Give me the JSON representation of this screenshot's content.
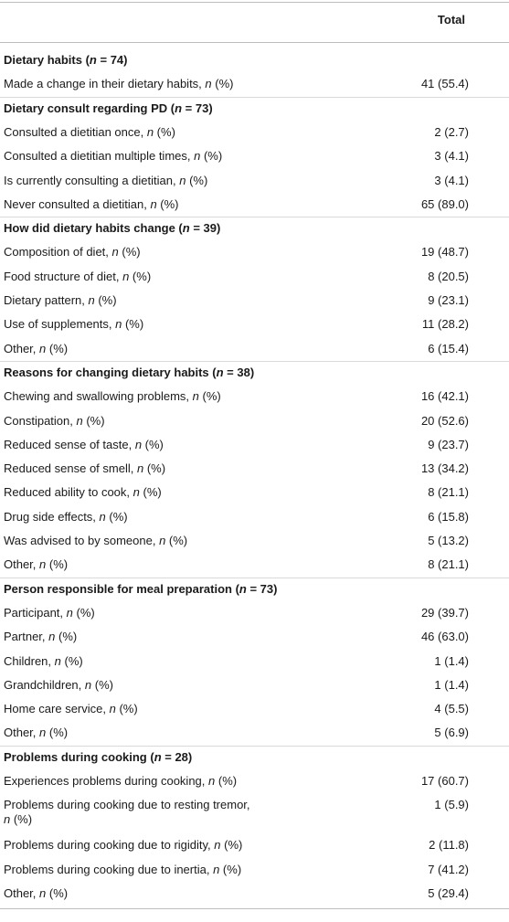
{
  "header": {
    "total_label": "Total"
  },
  "rows": [
    {
      "type": "section",
      "pre": "Dietary habits (",
      "n": "n",
      "post": " = 74)",
      "value": ""
    },
    {
      "type": "item",
      "pre": "Made a change in their dietary habits, ",
      "n": "n",
      "post": " (%)",
      "value": "41 (55.4)"
    },
    {
      "type": "section",
      "pre": "Dietary consult regarding PD (",
      "n": "n",
      "post": " = 73)",
      "value": ""
    },
    {
      "type": "item",
      "pre": "Consulted a dietitian once, ",
      "n": "n",
      "post": " (%)",
      "value": "2 (2.7)"
    },
    {
      "type": "item",
      "pre": "Consulted a dietitian multiple times, ",
      "n": "n",
      "post": " (%)",
      "value": "3 (4.1)"
    },
    {
      "type": "item",
      "pre": "Is currently consulting a dietitian, ",
      "n": "n",
      "post": " (%)",
      "value": "3 (4.1)"
    },
    {
      "type": "item",
      "pre": "Never consulted a dietitian, ",
      "n": "n",
      "post": " (%)",
      "value": "65 (89.0)"
    },
    {
      "type": "section",
      "pre": "How did dietary habits change (",
      "n": "n",
      "post": " = 39)",
      "value": ""
    },
    {
      "type": "item",
      "pre": "Composition of diet, ",
      "n": "n",
      "post": " (%)",
      "value": "19 (48.7)"
    },
    {
      "type": "item",
      "pre": "Food structure of diet, ",
      "n": "n",
      "post": " (%)",
      "value": "8 (20.5)"
    },
    {
      "type": "item",
      "pre": "Dietary pattern, ",
      "n": "n",
      "post": " (%)",
      "value": "9 (23.1)"
    },
    {
      "type": "item",
      "pre": "Use of supplements, ",
      "n": "n",
      "post": " (%)",
      "value": "11 (28.2)"
    },
    {
      "type": "item",
      "pre": "Other, ",
      "n": "n",
      "post": " (%)",
      "value": "6 (15.4)"
    },
    {
      "type": "section",
      "pre": "Reasons for changing dietary habits (",
      "n": "n",
      "post": " = 38)",
      "value": ""
    },
    {
      "type": "item",
      "pre": "Chewing and swallowing problems, ",
      "n": "n",
      "post": " (%)",
      "value": "16 (42.1)"
    },
    {
      "type": "item",
      "pre": "Constipation, ",
      "n": "n",
      "post": " (%)",
      "value": "20 (52.6)"
    },
    {
      "type": "item",
      "pre": "Reduced sense of taste, ",
      "n": "n",
      "post": " (%)",
      "value": "9 (23.7)"
    },
    {
      "type": "item",
      "pre": "Reduced sense of smell, ",
      "n": "n",
      "post": " (%)",
      "value": "13 (34.2)"
    },
    {
      "type": "item",
      "pre": "Reduced ability to cook, ",
      "n": "n",
      "post": " (%)",
      "value": "8 (21.1)"
    },
    {
      "type": "item",
      "pre": "Drug side effects, ",
      "n": "n",
      "post": " (%)",
      "value": "6 (15.8)"
    },
    {
      "type": "item",
      "pre": "Was advised to by someone, ",
      "n": "n",
      "post": " (%)",
      "value": "5 (13.2)"
    },
    {
      "type": "item",
      "pre": "Other, ",
      "n": "n",
      "post": " (%)",
      "value": "8 (21.1)"
    },
    {
      "type": "section",
      "pre": "Person responsible for meal preparation (",
      "n": "n",
      "post": " = 73)",
      "value": ""
    },
    {
      "type": "item",
      "pre": "Participant, ",
      "n": "n",
      "post": " (%)",
      "value": "29 (39.7)"
    },
    {
      "type": "item",
      "pre": "Partner, ",
      "n": "n",
      "post": " (%)",
      "value": "46 (63.0)"
    },
    {
      "type": "item",
      "pre": "Children, ",
      "n": "n",
      "post": " (%)",
      "value": "1 (1.4)"
    },
    {
      "type": "item",
      "pre": "Grandchildren, ",
      "n": "n",
      "post": " (%)",
      "value": "1 (1.4)"
    },
    {
      "type": "item",
      "pre": "Home care service, ",
      "n": "n",
      "post": " (%)",
      "value": "4 (5.5)"
    },
    {
      "type": "item",
      "pre": "Other, ",
      "n": "n",
      "post": " (%)",
      "value": "5 (6.9)"
    },
    {
      "type": "section",
      "pre": "Problems during cooking (",
      "n": "n",
      "post": " = 28)",
      "value": ""
    },
    {
      "type": "item",
      "pre": "Experiences problems during cooking, ",
      "n": "n",
      "post": " (%)",
      "value": "17 (60.7)"
    },
    {
      "type": "item2",
      "pre": "Problems during cooking due to resting tremor,",
      "n": "n",
      "post": " (%)",
      "value": "1 (5.9)"
    },
    {
      "type": "item",
      "pre": "Problems during cooking due to rigidity, ",
      "n": "n",
      "post": " (%)",
      "value": "2 (11.8)"
    },
    {
      "type": "item",
      "pre": "Problems during cooking due to inertia, ",
      "n": "n",
      "post": " (%)",
      "value": "7 (41.2)"
    },
    {
      "type": "item",
      "pre": "Other, ",
      "n": "n",
      "post": " (%)",
      "value": "5 (29.4)"
    }
  ]
}
